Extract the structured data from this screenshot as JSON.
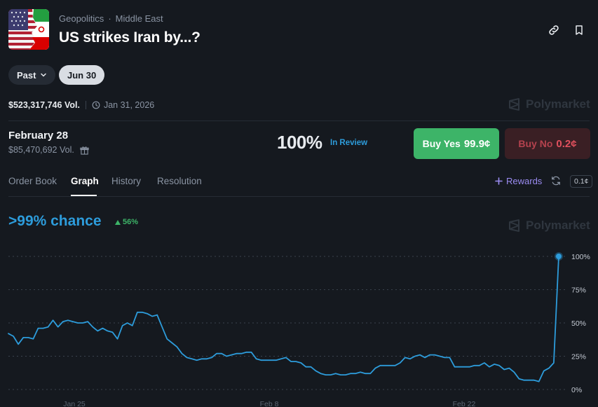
{
  "header": {
    "breadcrumb": [
      "Geopolitics",
      "Middle East"
    ],
    "breadcrumb_sep": "·",
    "title": "US strikes Iran by...?",
    "icons": [
      "link-icon",
      "bookmark-icon"
    ]
  },
  "filters": {
    "past_label": "Past",
    "selected_date": "Jun 30"
  },
  "market": {
    "volume": "$523,317,746 Vol.",
    "end_date": "Jan 31, 2026",
    "watermark": "Polymarket"
  },
  "outcome": {
    "label": "February 28",
    "volume": "$85,470,692 Vol.",
    "probability": "100%",
    "status": "In Review",
    "buy_yes_label": "Buy Yes",
    "buy_yes_price": "99.9¢",
    "buy_no_label": "Buy No",
    "buy_no_price": "0.2¢"
  },
  "tabs": {
    "order_book": "Order Book",
    "graph": "Graph",
    "history": "History",
    "resolution": "Resolution",
    "active": "Graph",
    "rewards": "Rewards",
    "tick": "0.1¢"
  },
  "graph": {
    "chance": ">99% chance",
    "delta": "56%",
    "watermark": "Polymarket"
  },
  "colors": {
    "accent_blue": "#2d9cdb",
    "yes_green": "#3db468",
    "no_red": "#e0505d",
    "rewards_purple": "#9b8cf2"
  },
  "chart_data": {
    "type": "line",
    "x_ticks": [
      "Jan 25",
      "Feb 8",
      "Feb 22"
    ],
    "y_ticks": [
      "100%",
      "75%",
      "50%",
      "25%",
      "0%"
    ],
    "ylim": [
      0,
      100
    ],
    "grid": true,
    "series": [
      {
        "values": [
          42,
          40,
          34,
          39,
          39,
          38,
          46,
          46,
          47,
          52,
          47,
          51,
          52,
          51,
          50,
          50,
          51,
          47,
          44,
          46,
          44,
          43,
          38,
          48,
          50,
          48,
          58,
          58,
          57,
          55,
          56,
          47,
          38,
          35,
          32,
          27,
          24,
          23,
          22,
          23,
          23,
          24,
          27,
          27,
          25,
          26,
          27,
          27,
          28,
          28,
          23,
          22,
          22,
          22,
          22,
          23,
          24,
          21,
          21,
          20,
          17,
          17,
          14,
          12,
          11,
          11,
          12,
          11,
          11,
          12,
          12,
          13,
          12,
          12,
          16,
          18,
          18,
          18,
          18,
          20,
          24,
          23,
          25,
          26,
          24,
          26,
          26,
          25,
          24,
          24,
          17,
          17,
          17,
          17,
          18,
          18,
          20,
          17,
          19,
          18,
          15,
          16,
          13,
          8,
          7,
          7,
          7,
          6,
          14,
          16,
          20,
          100
        ]
      }
    ]
  }
}
